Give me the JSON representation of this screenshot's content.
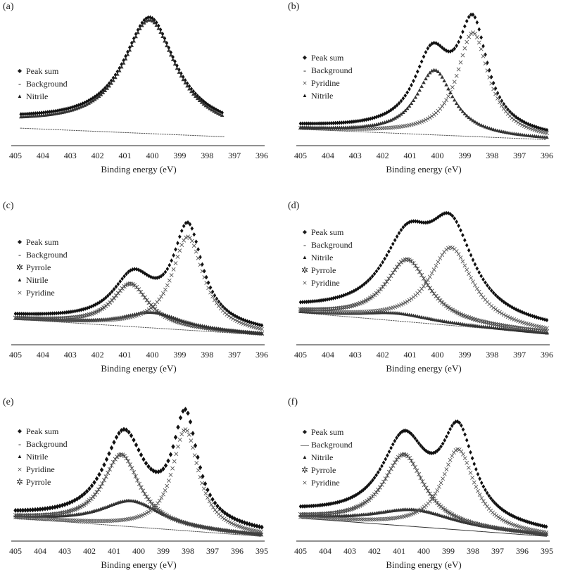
{
  "chart_data": [
    {
      "type": "scatter",
      "panel_label": "(a)",
      "xlabel": "Binding energy (eV)",
      "ylabel": "",
      "xlim": [
        405,
        396
      ],
      "ylim": [
        0,
        1.05
      ],
      "x_ticks": [
        405,
        404,
        403,
        402,
        401,
        400,
        399,
        398,
        397,
        396
      ],
      "x_range": [
        404.8,
        397.4
      ],
      "legend_position": "left",
      "series": [
        {
          "name": "Peak sum",
          "marker": "diamond",
          "baseline": [
            0.18,
            0.09
          ],
          "peaks": [
            {
              "center": 400.1,
              "height": 0.84,
              "width": 1.15
            }
          ]
        },
        {
          "name": "Background",
          "marker": "dash",
          "baseline": [
            0.12,
            0.04
          ],
          "peaks": []
        },
        {
          "name": "Nitrile",
          "marker": "triangle",
          "baseline": [
            0.16,
            0.07
          ],
          "peaks": [
            {
              "center": 400.1,
              "height": 0.84,
              "width": 1.15
            }
          ]
        }
      ]
    },
    {
      "type": "scatter",
      "panel_label": "(b)",
      "xlabel": "Binding energy (eV)",
      "ylabel": "",
      "xlim": [
        405,
        396
      ],
      "ylim": [
        0,
        1.05
      ],
      "x_ticks": [
        405,
        404,
        403,
        402,
        401,
        400,
        399,
        398,
        397,
        396
      ],
      "x_range": [
        405,
        396
      ],
      "legend_position": "left",
      "series": [
        {
          "name": "Peak sum",
          "marker": "diamond",
          "baseline": [
            0.13,
            0.04
          ],
          "peaks": [
            {
              "center": 400.2,
              "height": 0.56,
              "width": 0.8
            },
            {
              "center": 398.7,
              "height": 0.8,
              "width": 0.65
            }
          ]
        },
        {
          "name": "Background",
          "marker": "dash",
          "baseline": [
            0.11,
            0.03
          ],
          "peaks": []
        },
        {
          "name": "Pyridine",
          "marker": "cross",
          "baseline": [
            0.11,
            0.03
          ],
          "peaks": [
            {
              "center": 398.7,
              "height": 0.8,
              "width": 0.7
            }
          ]
        },
        {
          "name": "Nitrile",
          "marker": "triangle",
          "baseline": [
            0.11,
            0.03
          ],
          "peaks": [
            {
              "center": 400.1,
              "height": 0.5,
              "width": 0.8
            }
          ]
        }
      ]
    },
    {
      "type": "scatter",
      "panel_label": "(c)",
      "xlabel": "Binding energy (eV)",
      "ylabel": "",
      "xlim": [
        405,
        396
      ],
      "ylim": [
        0,
        1.05
      ],
      "x_ticks": [
        405,
        404,
        403,
        402,
        401,
        400,
        399,
        398,
        397,
        396
      ],
      "x_range": [
        405,
        396
      ],
      "legend_position": "left",
      "series": [
        {
          "name": "Peak sum",
          "marker": "diamond",
          "baseline": [
            0.2,
            0.08
          ],
          "peaks": [
            {
              "center": 400.7,
              "height": 0.35,
              "width": 0.9
            },
            {
              "center": 398.7,
              "height": 0.75,
              "width": 0.65
            }
          ]
        },
        {
          "name": "Background",
          "marker": "dash",
          "baseline": [
            0.18,
            0.06
          ],
          "peaks": []
        },
        {
          "name": "Pyrrole",
          "marker": "asterisk",
          "baseline": [
            0.18,
            0.06
          ],
          "peaks": [
            {
              "center": 400.8,
              "height": 0.33,
              "width": 0.8
            }
          ]
        },
        {
          "name": "Nitrile",
          "marker": "triangle",
          "baseline": [
            0.18,
            0.06
          ],
          "peaks": [
            {
              "center": 400.0,
              "height": 0.12,
              "width": 1.3
            }
          ]
        },
        {
          "name": "Pyridine",
          "marker": "cross",
          "baseline": [
            0.18,
            0.06
          ],
          "peaks": [
            {
              "center": 398.7,
              "height": 0.72,
              "width": 0.7
            }
          ]
        }
      ]
    },
    {
      "type": "scatter",
      "panel_label": "(d)",
      "xlabel": "Binding energy (eV)",
      "ylabel": "",
      "xlim": [
        405,
        396
      ],
      "ylim": [
        0,
        1.05
      ],
      "x_ticks": [
        405,
        404,
        403,
        402,
        401,
        400,
        399,
        398,
        397,
        396
      ],
      "x_range": [
        405,
        396
      ],
      "legend_position": "left",
      "series": [
        {
          "name": "Peak sum",
          "marker": "diamond",
          "baseline": [
            0.25,
            0.1
          ],
          "peaks": [
            {
              "center": 401.1,
              "height": 0.55,
              "width": 1.1
            },
            {
              "center": 399.5,
              "height": 0.65,
              "width": 1.0
            }
          ]
        },
        {
          "name": "Background",
          "marker": "dash",
          "baseline": [
            0.23,
            0.07
          ],
          "peaks": []
        },
        {
          "name": "Nitrile",
          "marker": "triangle",
          "baseline": [
            0.23,
            0.07
          ],
          "peaks": [
            {
              "center": 401.5,
              "height": 0.06,
              "width": 1.6
            }
          ]
        },
        {
          "name": "Pyrrole",
          "marker": "asterisk",
          "baseline": [
            0.23,
            0.07
          ],
          "peaks": [
            {
              "center": 401.1,
              "height": 0.48,
              "width": 0.95
            }
          ]
        },
        {
          "name": "Pyridine",
          "marker": "cross",
          "baseline": [
            0.23,
            0.07
          ],
          "peaks": [
            {
              "center": 399.5,
              "height": 0.6,
              "width": 0.95
            }
          ]
        }
      ]
    },
    {
      "type": "scatter",
      "panel_label": "(e)",
      "xlabel": "Binding energy (eV)",
      "ylabel": "",
      "xlim": [
        405,
        395
      ],
      "ylim": [
        0,
        1.05
      ],
      "x_ticks": [
        405,
        404,
        403,
        402,
        401,
        400,
        399,
        398,
        397,
        396,
        395
      ],
      "x_range": [
        405,
        395
      ],
      "legend_position": "left",
      "series": [
        {
          "name": "Peak sum",
          "marker": "diamond-large",
          "baseline": [
            0.18,
            0.04
          ],
          "peaks": [
            {
              "center": 400.6,
              "height": 0.68,
              "width": 1.0
            },
            {
              "center": 398.1,
              "height": 0.82,
              "width": 0.6
            }
          ]
        },
        {
          "name": "Background",
          "marker": "dash",
          "baseline": [
            0.16,
            0.02
          ],
          "peaks": []
        },
        {
          "name": "Nitrile",
          "marker": "triangle",
          "baseline": [
            0.16,
            0.02
          ],
          "peaks": [
            {
              "center": 400.3,
              "height": 0.2,
              "width": 1.5
            }
          ]
        },
        {
          "name": "Pyridine",
          "marker": "cross",
          "baseline": [
            0.16,
            0.02
          ],
          "peaks": [
            {
              "center": 398.1,
              "height": 0.78,
              "width": 0.65
            }
          ]
        },
        {
          "name": "Pyrrole",
          "marker": "asterisk",
          "baseline": [
            0.16,
            0.02
          ],
          "peaks": [
            {
              "center": 400.7,
              "height": 0.55,
              "width": 0.9
            }
          ]
        }
      ]
    },
    {
      "type": "scatter",
      "panel_label": "(f)",
      "xlabel": "Binding energy (eV)",
      "ylabel": "",
      "xlim": [
        405,
        395
      ],
      "ylim": [
        0,
        1.05
      ],
      "x_ticks": [
        405,
        404,
        403,
        402,
        401,
        400,
        399,
        398,
        397,
        396,
        395
      ],
      "x_range": [
        405,
        395
      ],
      "legend_position": "left",
      "series": [
        {
          "name": "Peak sum",
          "marker": "diamond",
          "baseline": [
            0.2,
            0.04
          ],
          "peaks": [
            {
              "center": 400.8,
              "height": 0.62,
              "width": 1.1
            },
            {
              "center": 398.6,
              "height": 0.68,
              "width": 0.8
            }
          ]
        },
        {
          "name": "Background",
          "marker": "line",
          "baseline": [
            0.16,
            0.02
          ],
          "peaks": []
        },
        {
          "name": "Nitrile",
          "marker": "triangle",
          "baseline": [
            0.16,
            0.02
          ],
          "peaks": [
            {
              "center": 400.4,
              "height": 0.13,
              "width": 2.0
            }
          ]
        },
        {
          "name": "Pyrrole",
          "marker": "asterisk",
          "baseline": [
            0.16,
            0.02
          ],
          "peaks": [
            {
              "center": 400.8,
              "height": 0.55,
              "width": 1.0
            }
          ]
        },
        {
          "name": "Pyridine",
          "marker": "cross",
          "baseline": [
            0.16,
            0.02
          ],
          "peaks": [
            {
              "center": 398.6,
              "height": 0.62,
              "width": 0.8
            }
          ]
        }
      ]
    }
  ]
}
